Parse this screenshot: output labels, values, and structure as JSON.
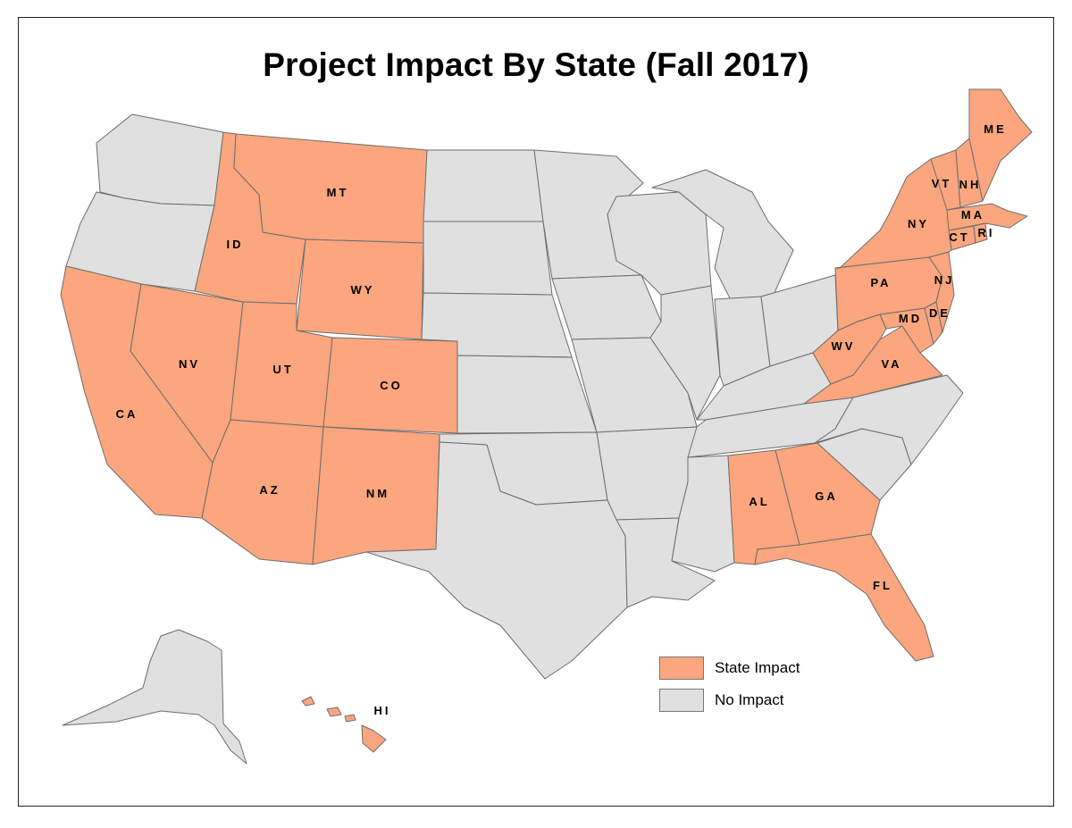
{
  "title": "Project Impact By State (Fall 2017)",
  "colors": {
    "impact": "#fba67e",
    "no_impact": "#e0e0e0",
    "border": "#6d6d6d"
  },
  "legend": [
    {
      "label": "State Impact",
      "color": "#fba67e"
    },
    {
      "label": "No Impact",
      "color": "#e0e0e0"
    }
  ],
  "states": {
    "WA": {
      "name": "Washington",
      "impact": false
    },
    "OR": {
      "name": "Oregon",
      "impact": false
    },
    "CA": {
      "name": "California",
      "impact": true,
      "label": "CA"
    },
    "NV": {
      "name": "Nevada",
      "impact": true,
      "label": "NV"
    },
    "ID": {
      "name": "Idaho",
      "impact": true,
      "label": "ID"
    },
    "MT": {
      "name": "Montana",
      "impact": true,
      "label": "MT"
    },
    "WY": {
      "name": "Wyoming",
      "impact": true,
      "label": "WY"
    },
    "UT": {
      "name": "Utah",
      "impact": true,
      "label": "UT"
    },
    "CO": {
      "name": "Colorado",
      "impact": true,
      "label": "CO"
    },
    "AZ": {
      "name": "Arizona",
      "impact": true,
      "label": "AZ"
    },
    "NM": {
      "name": "New Mexico",
      "impact": true,
      "label": "NM"
    },
    "ND": {
      "name": "North Dakota",
      "impact": false
    },
    "SD": {
      "name": "South Dakota",
      "impact": false
    },
    "NE": {
      "name": "Nebraska",
      "impact": false
    },
    "KS": {
      "name": "Kansas",
      "impact": false
    },
    "OK": {
      "name": "Oklahoma",
      "impact": false
    },
    "TX": {
      "name": "Texas",
      "impact": false
    },
    "MN": {
      "name": "Minnesota",
      "impact": false
    },
    "IA": {
      "name": "Iowa",
      "impact": false
    },
    "MO": {
      "name": "Missouri",
      "impact": false
    },
    "AR": {
      "name": "Arkansas",
      "impact": false
    },
    "LA": {
      "name": "Louisiana",
      "impact": false
    },
    "WI": {
      "name": "Wisconsin",
      "impact": false
    },
    "IL": {
      "name": "Illinois",
      "impact": false
    },
    "MI": {
      "name": "Michigan",
      "impact": false
    },
    "IN": {
      "name": "Indiana",
      "impact": false
    },
    "OH": {
      "name": "Ohio",
      "impact": false
    },
    "KY": {
      "name": "Kentucky",
      "impact": false
    },
    "TN": {
      "name": "Tennessee",
      "impact": false
    },
    "MS": {
      "name": "Mississippi",
      "impact": false
    },
    "AL": {
      "name": "Alabama",
      "impact": true,
      "label": "AL"
    },
    "GA": {
      "name": "Georgia",
      "impact": true,
      "label": "GA"
    },
    "FL": {
      "name": "Florida",
      "impact": true,
      "label": "FL"
    },
    "SC": {
      "name": "South Carolina",
      "impact": false
    },
    "NC": {
      "name": "North Carolina",
      "impact": false
    },
    "VA": {
      "name": "Virginia",
      "impact": true,
      "label": "VA"
    },
    "WV": {
      "name": "West Virginia",
      "impact": true,
      "label": "WV"
    },
    "MD": {
      "name": "Maryland",
      "impact": true,
      "label": "MD"
    },
    "DE": {
      "name": "Delaware",
      "impact": true,
      "label": "DE"
    },
    "PA": {
      "name": "Pennsylvania",
      "impact": true,
      "label": "PA"
    },
    "NJ": {
      "name": "New Jersey",
      "impact": true,
      "label": "NJ"
    },
    "NY": {
      "name": "New York",
      "impact": true,
      "label": "NY"
    },
    "CT": {
      "name": "Connecticut",
      "impact": true,
      "label": "CT"
    },
    "RI": {
      "name": "Rhode Island",
      "impact": true,
      "label": "RI"
    },
    "MA": {
      "name": "Massachusetts",
      "impact": true,
      "label": "MA"
    },
    "VT": {
      "name": "Vermont",
      "impact": true,
      "label": "VT"
    },
    "NH": {
      "name": "New Hampshire",
      "impact": true,
      "label": "NH"
    },
    "ME": {
      "name": "Maine",
      "impact": true,
      "label": "ME"
    },
    "AK": {
      "name": "Alaska",
      "impact": false
    },
    "HI": {
      "name": "Hawaii",
      "impact": true,
      "label": "HI"
    }
  }
}
